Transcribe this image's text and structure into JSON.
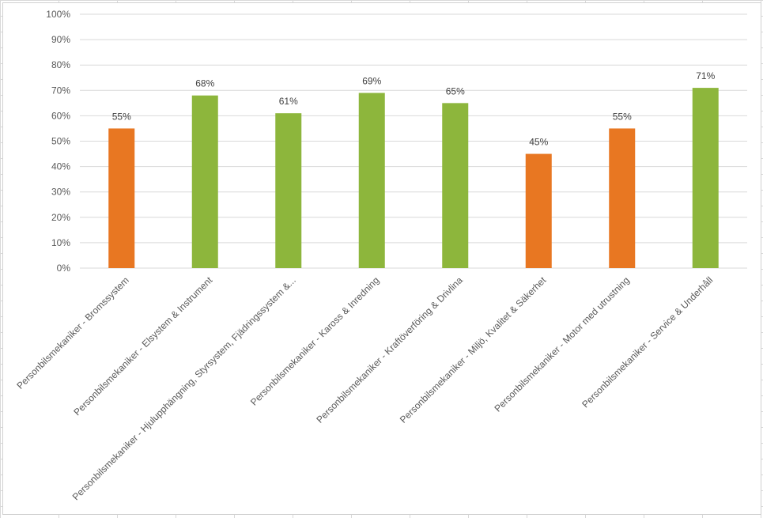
{
  "chart_data": {
    "type": "bar",
    "categories": [
      "Personbilsmekaniker - Bromssystem",
      "Personbilsmekaniker - Elsystem & Instrument",
      "Personbilsmekaniker - Hjulupphängning, Styrsystem, Fjädringssystem &...",
      "Personbilsmekaniker - Kaross & Inredning",
      "Personbilsmekaniker - Kraftöverföring & Drivlina",
      "Personbilsmekaniker - Miljö, Kvalitet & Säkerhet",
      "Personbilsmekaniker - Motor med utrustning",
      "Personbilsmekaniker - Service & Underhåll"
    ],
    "values": [
      55,
      68,
      61,
      69,
      65,
      45,
      55,
      71
    ],
    "data_labels": [
      "55%",
      "68%",
      "61%",
      "69%",
      "65%",
      "45%",
      "55%",
      "71%"
    ],
    "bar_colors": [
      "#e87722",
      "#8db63c",
      "#8db63c",
      "#8db63c",
      "#8db63c",
      "#e87722",
      "#e87722",
      "#8db63c"
    ],
    "ylim": [
      0,
      100
    ],
    "y_ticks": [
      "0%",
      "10%",
      "20%",
      "30%",
      "40%",
      "50%",
      "60%",
      "70%",
      "80%",
      "90%",
      "100%"
    ],
    "grid": true,
    "gridline_color": "#d9d9d9",
    "title": "",
    "xlabel": "",
    "ylabel": ""
  }
}
